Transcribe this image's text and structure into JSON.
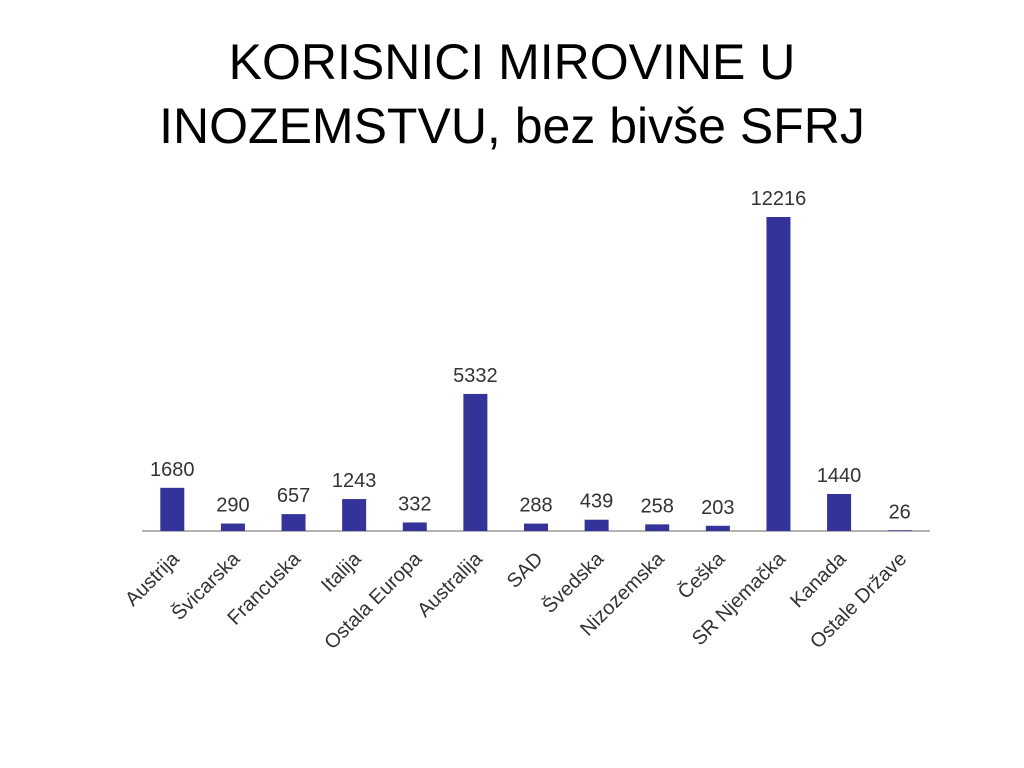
{
  "chart_data": {
    "type": "bar",
    "title": "KORISNICI MIROVINE U INOZEMSTVU, bez bivše SFRJ",
    "categories": [
      "Austrija",
      "Švicarska",
      "Francuska",
      "Italija",
      "Ostala Europa",
      "Australija",
      "SAD",
      "Švedska",
      "Nizozemska",
      "Češka",
      "SR Njemačka",
      "Kanada",
      "Ostale Države"
    ],
    "values": [
      1680,
      290,
      657,
      1243,
      332,
      5332,
      288,
      439,
      258,
      203,
      12216,
      1440,
      26
    ],
    "color": "#333399"
  }
}
